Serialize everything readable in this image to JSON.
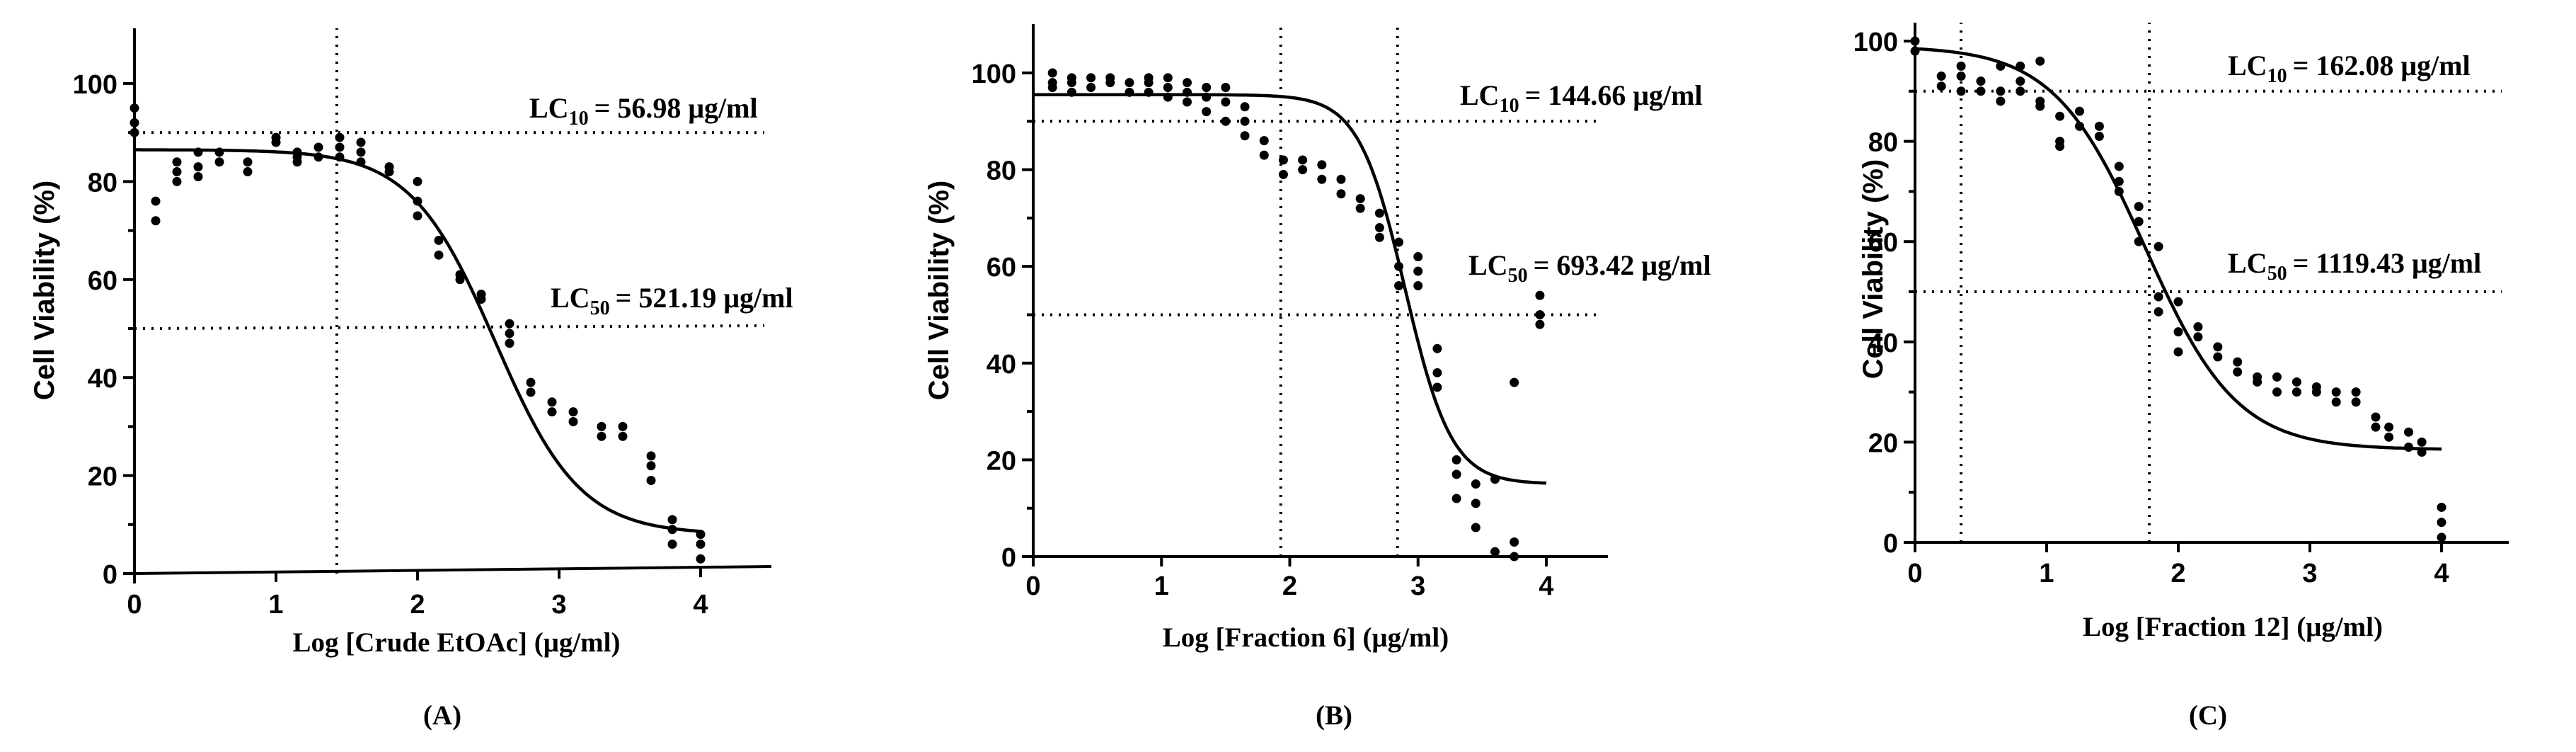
{
  "chart_data": [
    {
      "type": "scatter",
      "panel_label": "(A)",
      "title": "",
      "xlabel": "Log [Crude EtOAc] (μg/ml)",
      "ylabel": "Cell Viability (%)",
      "xlim": [
        0,
        4.5
      ],
      "ylim": [
        0,
        110
      ],
      "xticks": [
        0,
        1,
        2,
        3,
        4
      ],
      "yticks": [
        0,
        20,
        40,
        60,
        80,
        100
      ],
      "fit": {
        "model": "sigmoid",
        "bottom": 8,
        "top": 86.5,
        "logec50": 2.55,
        "hill": 1.45,
        "x_range": [
          0,
          4
        ]
      },
      "guides": {
        "h": [
          90,
          50
        ],
        "v": [
          1.43
        ]
      },
      "annotations": [
        {
          "label": "LC10",
          "value": "= 56.98  μg/ml",
          "at": [
            2.75,
            95
          ]
        },
        {
          "label": "LC50",
          "value": "= 521.19 μg/ml",
          "at": [
            2.95,
            55
          ]
        }
      ],
      "points": [
        [
          0,
          95
        ],
        [
          0,
          92
        ],
        [
          0,
          90
        ],
        [
          0.15,
          76
        ],
        [
          0.15,
          72
        ],
        [
          0.3,
          84
        ],
        [
          0.3,
          82
        ],
        [
          0.3,
          80
        ],
        [
          0.45,
          86
        ],
        [
          0.45,
          83
        ],
        [
          0.45,
          81
        ],
        [
          0.6,
          86
        ],
        [
          0.6,
          84
        ],
        [
          0.8,
          84
        ],
        [
          0.8,
          82
        ],
        [
          1.0,
          89
        ],
        [
          1.0,
          88
        ],
        [
          1.15,
          86
        ],
        [
          1.15,
          85
        ],
        [
          1.15,
          84
        ],
        [
          1.3,
          87
        ],
        [
          1.3,
          85
        ],
        [
          1.45,
          89
        ],
        [
          1.45,
          87
        ],
        [
          1.45,
          85
        ],
        [
          1.6,
          88
        ],
        [
          1.6,
          86
        ],
        [
          1.6,
          84
        ],
        [
          1.8,
          83
        ],
        [
          1.8,
          82
        ],
        [
          2.0,
          80
        ],
        [
          2.0,
          76
        ],
        [
          2.0,
          73
        ],
        [
          2.15,
          68
        ],
        [
          2.15,
          65
        ],
        [
          2.3,
          61
        ],
        [
          2.3,
          60
        ],
        [
          2.45,
          57
        ],
        [
          2.45,
          56
        ],
        [
          2.65,
          51
        ],
        [
          2.65,
          49
        ],
        [
          2.65,
          47
        ],
        [
          2.8,
          39
        ],
        [
          2.8,
          37
        ],
        [
          2.95,
          35
        ],
        [
          2.95,
          33
        ],
        [
          3.1,
          33
        ],
        [
          3.1,
          31
        ],
        [
          3.3,
          30
        ],
        [
          3.3,
          28
        ],
        [
          3.45,
          30
        ],
        [
          3.45,
          28
        ],
        [
          3.65,
          24
        ],
        [
          3.65,
          22
        ],
        [
          3.65,
          19
        ],
        [
          3.8,
          11
        ],
        [
          3.8,
          9
        ],
        [
          3.8,
          6
        ],
        [
          4.0,
          8
        ],
        [
          4.0,
          6
        ],
        [
          4.0,
          3
        ]
      ]
    },
    {
      "type": "scatter",
      "panel_label": "(B)",
      "title": "",
      "xlabel": "Log [Fraction 6] (μg/ml)",
      "ylabel": "Cell Viability (%)",
      "xlim": [
        0,
        4.5
      ],
      "ylim": [
        0,
        110
      ],
      "xticks": [
        0,
        1,
        2,
        3,
        4
      ],
      "yticks": [
        0,
        20,
        40,
        60,
        80,
        100
      ],
      "fit": {
        "model": "sigmoid",
        "bottom": 15,
        "top": 95.5,
        "logec50": 2.9,
        "hill": 2.4,
        "x_range": [
          0,
          4
        ]
      },
      "guides": {
        "h": [
          90,
          50
        ],
        "v": [
          1.93,
          2.84
        ]
      },
      "annotations": [
        {
          "label": "LC10",
          "value": "= 144.66 μg/ml",
          "at": [
            3.35,
            95
          ]
        },
        {
          "label": "LC50",
          "value": "= 693.42 μg/ml",
          "at": [
            3.35,
            60
          ]
        }
      ],
      "points": [
        [
          0.15,
          100
        ],
        [
          0.15,
          98
        ],
        [
          0.15,
          97
        ],
        [
          0.3,
          99
        ],
        [
          0.3,
          98
        ],
        [
          0.3,
          96
        ],
        [
          0.45,
          99
        ],
        [
          0.45,
          97
        ],
        [
          0.6,
          99
        ],
        [
          0.6,
          98
        ],
        [
          0.75,
          98
        ],
        [
          0.75,
          96
        ],
        [
          0.9,
          99
        ],
        [
          0.9,
          98
        ],
        [
          0.9,
          96
        ],
        [
          1.05,
          99
        ],
        [
          1.05,
          97
        ],
        [
          1.05,
          95
        ],
        [
          1.2,
          98
        ],
        [
          1.2,
          96
        ],
        [
          1.2,
          94
        ],
        [
          1.35,
          97
        ],
        [
          1.35,
          95
        ],
        [
          1.35,
          92
        ],
        [
          1.5,
          97
        ],
        [
          1.5,
          94
        ],
        [
          1.5,
          90
        ],
        [
          1.65,
          93
        ],
        [
          1.65,
          90
        ],
        [
          1.65,
          87
        ],
        [
          1.8,
          86
        ],
        [
          1.8,
          83
        ],
        [
          1.95,
          82
        ],
        [
          1.95,
          79
        ],
        [
          2.1,
          82
        ],
        [
          2.1,
          80
        ],
        [
          2.25,
          81
        ],
        [
          2.25,
          78
        ],
        [
          2.4,
          78
        ],
        [
          2.4,
          75
        ],
        [
          2.55,
          74
        ],
        [
          2.55,
          72
        ],
        [
          2.7,
          71
        ],
        [
          2.7,
          68
        ],
        [
          2.7,
          66
        ],
        [
          2.85,
          65
        ],
        [
          2.85,
          60
        ],
        [
          2.85,
          56
        ],
        [
          3.0,
          62
        ],
        [
          3.0,
          59
        ],
        [
          3.0,
          56
        ],
        [
          3.15,
          43
        ],
        [
          3.15,
          38
        ],
        [
          3.15,
          35
        ],
        [
          3.3,
          20
        ],
        [
          3.3,
          17
        ],
        [
          3.3,
          12
        ],
        [
          3.45,
          15
        ],
        [
          3.45,
          11
        ],
        [
          3.45,
          6
        ],
        [
          3.6,
          16
        ],
        [
          3.6,
          1
        ],
        [
          3.75,
          36
        ],
        [
          3.75,
          3
        ],
        [
          3.75,
          0
        ],
        [
          3.95,
          54
        ],
        [
          3.95,
          50
        ],
        [
          3.95,
          48
        ]
      ]
    },
    {
      "type": "scatter",
      "panel_label": "(C)",
      "title": "",
      "xlabel": "Log [Fraction 12] (μg/ml)",
      "ylabel": "Cell Viability (%)",
      "xlim": [
        0,
        4.5
      ],
      "ylim": [
        0,
        104
      ],
      "xticks": [
        0,
        1,
        2,
        3,
        4
      ],
      "yticks": [
        0,
        20,
        40,
        60,
        80,
        100
      ],
      "fit": {
        "model": "sigmoid",
        "bottom": 18.5,
        "top": 99,
        "logec50": 1.75,
        "hill": 1.25,
        "x_range": [
          0,
          4
        ]
      },
      "guides": {
        "h": [
          90,
          50
        ],
        "v": [
          0.35,
          1.78
        ]
      },
      "annotations": [
        {
          "label": "LC10",
          "value": "= 162.08 μg/ml",
          "at": [
            2.4,
            95
          ]
        },
        {
          "label": "LC50",
          "value": "= 1119.43 μg/ml",
          "at": [
            2.4,
            55
          ]
        }
      ],
      "points": [
        [
          0,
          100
        ],
        [
          0,
          98
        ],
        [
          0.2,
          93
        ],
        [
          0.2,
          91
        ],
        [
          0.35,
          95
        ],
        [
          0.35,
          93
        ],
        [
          0.35,
          90
        ],
        [
          0.5,
          92
        ],
        [
          0.5,
          90
        ],
        [
          0.65,
          95
        ],
        [
          0.65,
          90
        ],
        [
          0.65,
          88
        ],
        [
          0.8,
          95
        ],
        [
          0.8,
          92
        ],
        [
          0.8,
          90
        ],
        [
          0.95,
          96
        ],
        [
          0.95,
          88
        ],
        [
          0.95,
          87
        ],
        [
          1.1,
          85
        ],
        [
          1.1,
          80
        ],
        [
          1.1,
          79
        ],
        [
          1.25,
          86
        ],
        [
          1.25,
          83
        ],
        [
          1.4,
          83
        ],
        [
          1.4,
          81
        ],
        [
          1.55,
          75
        ],
        [
          1.55,
          72
        ],
        [
          1.55,
          70
        ],
        [
          1.7,
          67
        ],
        [
          1.7,
          64
        ],
        [
          1.7,
          60
        ],
        [
          1.85,
          59
        ],
        [
          1.85,
          49
        ],
        [
          1.85,
          46
        ],
        [
          2.0,
          48
        ],
        [
          2.0,
          42
        ],
        [
          2.0,
          38
        ],
        [
          2.15,
          43
        ],
        [
          2.15,
          41
        ],
        [
          2.3,
          39
        ],
        [
          2.3,
          37
        ],
        [
          2.45,
          36
        ],
        [
          2.45,
          34
        ],
        [
          2.6,
          33
        ],
        [
          2.6,
          32
        ],
        [
          2.75,
          33
        ],
        [
          2.75,
          30
        ],
        [
          2.9,
          32
        ],
        [
          2.9,
          30
        ],
        [
          3.05,
          31
        ],
        [
          3.05,
          30
        ],
        [
          3.2,
          30
        ],
        [
          3.2,
          28
        ],
        [
          3.35,
          30
        ],
        [
          3.35,
          28
        ],
        [
          3.5,
          25
        ],
        [
          3.5,
          23
        ],
        [
          3.6,
          23
        ],
        [
          3.6,
          21
        ],
        [
          3.75,
          22
        ],
        [
          3.75,
          19
        ],
        [
          3.85,
          20
        ],
        [
          3.85,
          18
        ],
        [
          4.0,
          7
        ],
        [
          4.0,
          4
        ],
        [
          4.0,
          1
        ]
      ]
    }
  ]
}
